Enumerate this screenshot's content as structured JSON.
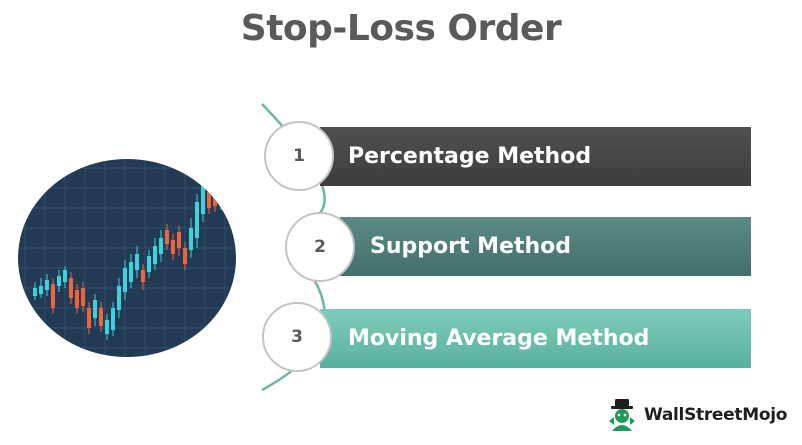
{
  "title": "Stop-Loss Order",
  "methods": [
    {
      "number": "1",
      "label": "Percentage Method",
      "color": "#474747"
    },
    {
      "number": "2",
      "label": "Support Method",
      "color": "#4f7c77"
    },
    {
      "number": "3",
      "label": "Moving Average Method",
      "color": "#6cbfab"
    }
  ],
  "colors": {
    "connector": "#6ab8a8",
    "chart_background": "#233a55",
    "candle_up": "#3ed2dc",
    "candle_down": "#f0643c"
  },
  "brand": {
    "name": "WallStreetMojo",
    "color": "#1f9c5a"
  }
}
